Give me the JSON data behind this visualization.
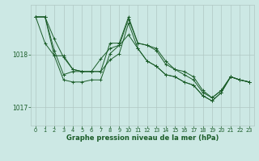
{
  "background_color": "#cce8e4",
  "grid_color": "#b0c8c4",
  "line_color": "#1a5c28",
  "marker_color": "#1a5c28",
  "xlabel": "Graphe pression niveau de la mer (hPa)",
  "xlim": [
    -0.5,
    23.5
  ],
  "ylim": [
    1016.65,
    1018.95
  ],
  "yticks": [
    1017,
    1018
  ],
  "xticks": [
    0,
    1,
    2,
    3,
    4,
    5,
    6,
    7,
    8,
    9,
    10,
    11,
    12,
    13,
    14,
    15,
    16,
    17,
    18,
    19,
    20,
    21,
    22,
    23
  ],
  "series": [
    [
      1018.72,
      1018.72,
      1018.3,
      1017.95,
      1017.72,
      1017.68,
      1017.68,
      1017.68,
      1017.9,
      1018.02,
      1018.6,
      1018.12,
      1017.88,
      1017.78,
      1017.62,
      1017.58,
      1017.48,
      1017.42,
      1017.22,
      1017.12,
      1017.28,
      1017.58,
      1017.52,
      1017.48
    ],
    [
      1018.72,
      1018.22,
      1017.98,
      1017.98,
      1017.72,
      1017.68,
      1017.68,
      1017.92,
      1018.12,
      1018.18,
      1018.38,
      1018.12,
      1017.88,
      1017.78,
      1017.62,
      1017.58,
      1017.48,
      1017.42,
      1017.22,
      1017.12,
      1017.28,
      1017.58,
      1017.52,
      1017.48
    ],
    [
      1018.72,
      1018.72,
      1018.08,
      1017.62,
      1017.68,
      1017.68,
      1017.68,
      1017.68,
      1018.22,
      1018.22,
      1018.72,
      1018.22,
      1018.18,
      1018.08,
      1017.82,
      1017.72,
      1017.68,
      1017.58,
      1017.32,
      1017.18,
      1017.32,
      1017.58,
      1017.52,
      1017.48
    ],
    [
      1018.72,
      1018.72,
      1017.98,
      1017.52,
      1017.48,
      1017.48,
      1017.52,
      1017.52,
      1018.02,
      1018.18,
      1018.68,
      1018.22,
      1018.18,
      1018.12,
      1017.88,
      1017.72,
      1017.62,
      1017.52,
      1017.28,
      1017.18,
      1017.32,
      1017.58,
      1017.52,
      1017.48
    ]
  ]
}
